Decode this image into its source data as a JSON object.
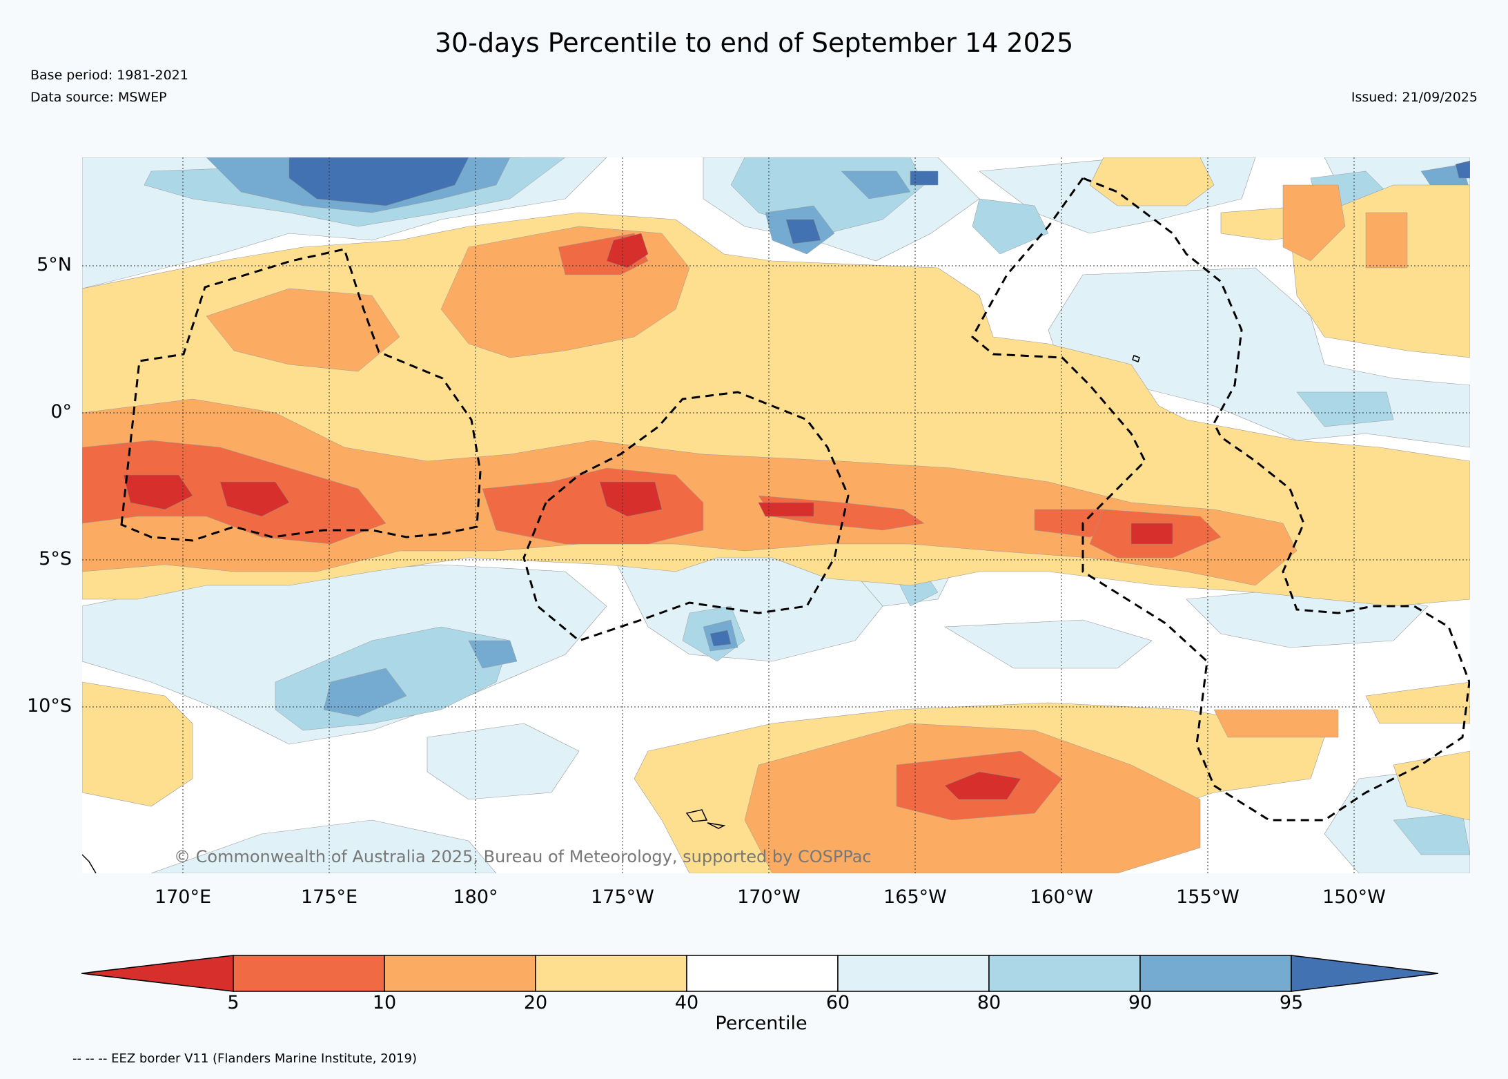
{
  "title": "30-days Percentile to end of September 14 2025",
  "base_period": "Base period: 1981-2021",
  "data_source": "Data source: MSWEP",
  "issued": "Issued: 21/09/2025",
  "copyright": "© Commonwealth of Australia 2025, Bureau of Meteorology, supported by COSPPac",
  "lat_ticks": [
    "5°N",
    "0°",
    "5°S",
    "10°S"
  ],
  "lon_ticks": [
    "170°E",
    "175°E",
    "180°",
    "175°W",
    "170°W",
    "165°W",
    "160°W",
    "155°W",
    "150°W"
  ],
  "colorbar": {
    "label": "Percentile",
    "ticks": [
      "5",
      "10",
      "20",
      "40",
      "60",
      "80",
      "90",
      "95"
    ],
    "colors": {
      "lt5": "#d7302c",
      "5_10": "#f06b43",
      "10_20": "#fbac62",
      "20_40": "#fedf90",
      "40_60": "#ffffff",
      "60_80": "#e0f2f7",
      "80_90": "#acd7e7",
      "90_95": "#75abd0",
      "gt95": "#4372b2"
    }
  },
  "footnote": "-- -- -- EEZ border V11 (Flanders Marine Institute, 2019)"
}
